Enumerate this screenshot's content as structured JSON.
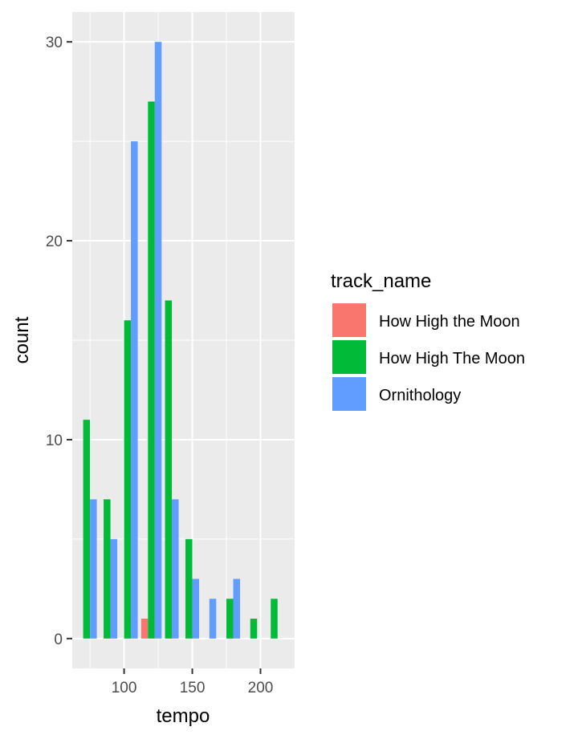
{
  "chart_data": {
    "type": "bar",
    "xlabel": "tempo",
    "ylabel": "count",
    "xlim": [
      62,
      225
    ],
    "ylim": [
      -1.5,
      31.5
    ],
    "x_ticks": [
      100,
      150,
      200
    ],
    "y_ticks": [
      0,
      10,
      20,
      30
    ],
    "grid": true,
    "legend_title": "track_name",
    "legend_position": "right",
    "bin_width": 15,
    "bin_centers": [
      75,
      90,
      105,
      120,
      135,
      150,
      165,
      180,
      195,
      210
    ],
    "series": [
      {
        "name": "How High the Moon",
        "color": "#F8766D",
        "values": [
          0,
          0,
          0,
          1,
          0,
          0,
          0,
          0,
          0,
          0
        ]
      },
      {
        "name": "How High The Moon",
        "color": "#00BA38",
        "values": [
          11,
          7,
          16,
          27,
          17,
          5,
          0,
          2,
          1,
          2
        ]
      },
      {
        "name": "Ornithology",
        "color": "#619CFF",
        "values": [
          7,
          5,
          25,
          30,
          7,
          3,
          2,
          3,
          0,
          0
        ]
      }
    ]
  }
}
